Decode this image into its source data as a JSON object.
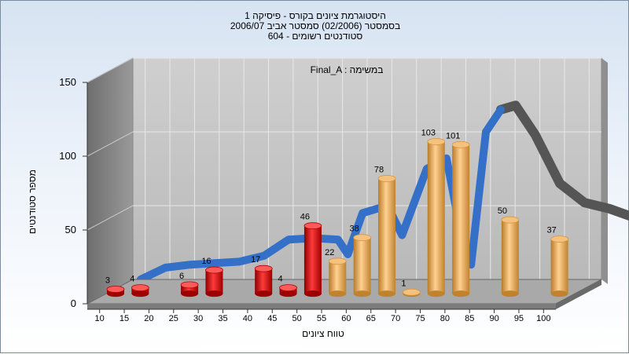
{
  "chart_data": {
    "type": "bar",
    "title": [
      "היסטוגרמת ציונים בקורס - פיסיקה 1",
      "בסמסטר  (02/2006)  סמסטר אביב 2006/07",
      "סטודנטים רשומים - 604"
    ],
    "xlabel": "טווח ציונים",
    "ylabel": "מספר סטודנטים",
    "annotation": "Final_A : במשימה",
    "ylim": [
      0,
      150
    ],
    "yticks": [
      0,
      50,
      100,
      150
    ],
    "xticks": [
      "10",
      "15",
      "20",
      "25",
      "30",
      "35",
      "40",
      "45",
      "50",
      "55",
      "60",
      "65",
      "70",
      "75",
      "80",
      "85",
      "90",
      "95",
      "100"
    ],
    "x": [
      10,
      15,
      25,
      30,
      40,
      45,
      50,
      55,
      60,
      65,
      70,
      75,
      80,
      90,
      100
    ],
    "values": [
      3,
      4,
      6,
      16,
      17,
      4,
      46,
      22,
      38,
      78,
      1,
      103,
      101,
      50,
      37
    ],
    "grid": true,
    "colors": {
      "fail": "#d81414",
      "pass": "#e6a24a",
      "curve_blue": "#3570c8",
      "curve_gray": "#555555"
    },
    "curve": [
      {
        "x": 10,
        "y": 0
      },
      {
        "x": 15,
        "y": 8
      },
      {
        "x": 20,
        "y": 10
      },
      {
        "x": 25,
        "y": 11
      },
      {
        "x": 30,
        "y": 12
      },
      {
        "x": 35,
        "y": 16
      },
      {
        "x": 40,
        "y": 27
      },
      {
        "x": 45,
        "y": 28
      },
      {
        "x": 50,
        "y": 27
      },
      {
        "x": 52,
        "y": 17
      },
      {
        "x": 55,
        "y": 45
      },
      {
        "x": 60,
        "y": 50
      },
      {
        "x": 63,
        "y": 30
      },
      {
        "x": 68,
        "y": 75
      },
      {
        "x": 72,
        "y": 82
      },
      {
        "x": 75,
        "y": 30
      },
      {
        "x": 77,
        "y": 10
      },
      {
        "x": 80,
        "y": 100
      },
      {
        "x": 83,
        "y": 115
      },
      {
        "x": 86,
        "y": 118
      },
      {
        "x": 90,
        "y": 98
      },
      {
        "x": 95,
        "y": 65
      },
      {
        "x": 100,
        "y": 52
      },
      {
        "x": 105,
        "y": 48
      },
      {
        "x": 110,
        "y": 42
      }
    ]
  }
}
